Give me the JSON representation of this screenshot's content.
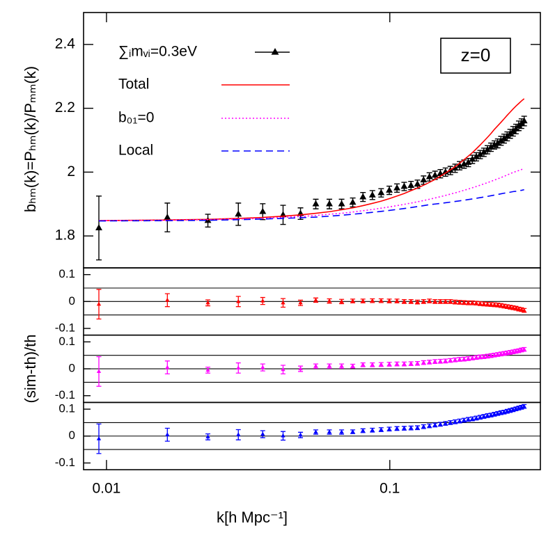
{
  "chart_data": {
    "type": "errorbar_line",
    "x_label": "k[h Mpc⁻¹]",
    "y_label": "bₕₘ(k)=Pₕₘ(k)/Pₘₘ(k)",
    "residual_label": "(sim-th)/th",
    "annotation": "z=0",
    "xscale": "log",
    "xlim": [
      0.0083,
      0.34
    ],
    "xticks": [
      0.01,
      0.1
    ],
    "ylim": [
      1.7,
      2.5
    ],
    "yticks": [
      1.8,
      2,
      2.2,
      2.4
    ],
    "residual_ylim": [
      -0.125,
      0.125
    ],
    "residual_yticks": [
      -0.1,
      0,
      0.1
    ],
    "residual_lines": [
      -0.05,
      0,
      0.05
    ],
    "x": [
      0.0094,
      0.0164,
      0.0228,
      0.0292,
      0.0356,
      0.042,
      0.0484,
      0.0548,
      0.0612,
      0.0676,
      0.074,
      0.0804,
      0.0868,
      0.0932,
      0.0996,
      0.106,
      0.1124,
      0.1188,
      0.1252,
      0.1316,
      0.138,
      0.1444,
      0.1508,
      0.1572,
      0.1636,
      0.17,
      0.1764,
      0.1828,
      0.1892,
      0.1956,
      0.202,
      0.2084,
      0.2148,
      0.2212,
      0.2276,
      0.234,
      0.2404,
      0.2468,
      0.2532,
      0.2596,
      0.266,
      0.2724,
      0.2788,
      0.2852,
      0.2916,
      0.298
    ],
    "residual_errors": [
      0.055,
      0.024,
      0.011,
      0.019,
      0.013,
      0.016,
      0.01,
      0.008,
      0.008,
      0.008,
      0.007,
      0.007,
      0.007,
      0.007,
      0.007,
      0.007,
      0.007,
      0.007,
      0.007,
      0.007,
      0.007,
      0.007,
      0.007,
      0.007,
      0.007,
      0.007,
      0.007,
      0.007,
      0.007,
      0.007,
      0.007,
      0.007,
      0.007,
      0.007,
      0.007,
      0.007,
      0.007,
      0.007,
      0.007,
      0.007,
      0.007,
      0.007,
      0.007,
      0.007,
      0.007,
      0.007
    ],
    "series": [
      {
        "name": "∑ᵢmᵥᵢ=0.3eV",
        "color": "#000000",
        "style": "points",
        "values": [
          1.825,
          1.858,
          1.848,
          1.868,
          1.876,
          1.866,
          1.87,
          1.9,
          1.9,
          1.9,
          1.905,
          1.922,
          1.928,
          1.935,
          1.943,
          1.95,
          1.955,
          1.958,
          1.962,
          1.975,
          1.985,
          1.99,
          1.995,
          2.0,
          2.005,
          2.012,
          2.02,
          2.025,
          2.03,
          2.04,
          2.048,
          2.055,
          2.062,
          2.07,
          2.078,
          2.085,
          2.09,
          2.098,
          2.105,
          2.112,
          2.12,
          2.128,
          2.135,
          2.145,
          2.152,
          2.16
        ],
        "errors": [
          0.1,
          0.045,
          0.02,
          0.035,
          0.025,
          0.03,
          0.018,
          0.015,
          0.015,
          0.015,
          0.014,
          0.014,
          0.014,
          0.013,
          0.013,
          0.013,
          0.013,
          0.013,
          0.013,
          0.013,
          0.013,
          0.013,
          0.013,
          0.013,
          0.013,
          0.013,
          0.013,
          0.013,
          0.013,
          0.013,
          0.013,
          0.013,
          0.013,
          0.013,
          0.013,
          0.013,
          0.014,
          0.014,
          0.014,
          0.014,
          0.014,
          0.015,
          0.015,
          0.015,
          0.015,
          0.015
        ]
      },
      {
        "name": "Total",
        "color": "#ff0000",
        "style": "solid",
        "values": [
          1.848,
          1.85,
          1.852,
          1.855,
          1.858,
          1.862,
          1.866,
          1.871,
          1.876,
          1.882,
          1.888,
          1.895,
          1.902,
          1.909,
          1.917,
          1.925,
          1.933,
          1.942,
          1.95,
          1.959,
          1.968,
          1.977,
          1.987,
          1.997,
          2.007,
          2.017,
          2.028,
          2.039,
          2.05,
          2.061,
          2.073,
          2.085,
          2.097,
          2.109,
          2.121,
          2.134,
          2.145,
          2.156,
          2.167,
          2.178,
          2.188,
          2.198,
          2.207,
          2.215,
          2.223,
          2.23
        ],
        "residuals": [
          -0.01,
          0.005,
          -0.005,
          0,
          0.002,
          -0.005,
          -0.005,
          0.005,
          0.002,
          0,
          0.002,
          0.002,
          0.003,
          0.003,
          0.002,
          0.002,
          0,
          0,
          -0.002,
          0,
          0.002,
          0,
          0,
          0,
          0,
          -0.002,
          -0.003,
          -0.004,
          -0.005,
          -0.005,
          -0.006,
          -0.008,
          -0.009,
          -0.01,
          -0.011,
          -0.012,
          -0.013,
          -0.015,
          -0.017,
          -0.019,
          -0.021,
          -0.023,
          -0.025,
          -0.028,
          -0.03,
          -0.033
        ]
      },
      {
        "name": "b₀₁=0",
        "color": "#ff00ff",
        "style": "dotted",
        "values": [
          1.848,
          1.849,
          1.851,
          1.853,
          1.855,
          1.858,
          1.861,
          1.864,
          1.868,
          1.871,
          1.875,
          1.879,
          1.883,
          1.887,
          1.891,
          1.895,
          1.899,
          1.903,
          1.907,
          1.911,
          1.915,
          1.919,
          1.923,
          1.927,
          1.931,
          1.935,
          1.939,
          1.943,
          1.947,
          1.951,
          1.955,
          1.959,
          1.963,
          1.967,
          1.971,
          1.975,
          1.979,
          1.983,
          1.987,
          1.991,
          1.995,
          1.999,
          2.002,
          2.005,
          2.008,
          2.012
        ],
        "residuals": [
          -0.01,
          0.005,
          -0.005,
          0.003,
          0.005,
          -0.003,
          0,
          0.01,
          0.01,
          0.01,
          0.01,
          0.015,
          0.015,
          0.016,
          0.017,
          0.018,
          0.018,
          0.019,
          0.02,
          0.023,
          0.025,
          0.027,
          0.028,
          0.029,
          0.031,
          0.033,
          0.035,
          0.036,
          0.038,
          0.04,
          0.042,
          0.044,
          0.045,
          0.047,
          0.049,
          0.051,
          0.053,
          0.055,
          0.057,
          0.059,
          0.061,
          0.063,
          0.065,
          0.067,
          0.07,
          0.072
        ]
      },
      {
        "name": "Local",
        "color": "#0000ff",
        "style": "dashed",
        "values": [
          1.847,
          1.848,
          1.849,
          1.851,
          1.853,
          1.855,
          1.857,
          1.859,
          1.862,
          1.865,
          1.868,
          1.871,
          1.874,
          1.877,
          1.88,
          1.883,
          1.886,
          1.889,
          1.892,
          1.895,
          1.898,
          1.9,
          1.902,
          1.904,
          1.906,
          1.908,
          1.91,
          1.912,
          1.914,
          1.916,
          1.918,
          1.92,
          1.922,
          1.924,
          1.926,
          1.928,
          1.93,
          1.932,
          1.934,
          1.935,
          1.937,
          1.939,
          1.94,
          1.942,
          1.943,
          1.945
        ],
        "residuals": [
          -0.01,
          0.005,
          -0.003,
          0.005,
          0.007,
          0.001,
          0.004,
          0.015,
          0.015,
          0.015,
          0.016,
          0.02,
          0.022,
          0.024,
          0.026,
          0.028,
          0.029,
          0.03,
          0.031,
          0.035,
          0.038,
          0.041,
          0.044,
          0.047,
          0.05,
          0.053,
          0.056,
          0.059,
          0.062,
          0.064,
          0.067,
          0.07,
          0.073,
          0.076,
          0.078,
          0.081,
          0.084,
          0.087,
          0.089,
          0.092,
          0.095,
          0.098,
          0.101,
          0.104,
          0.107,
          0.11
        ]
      }
    ]
  }
}
